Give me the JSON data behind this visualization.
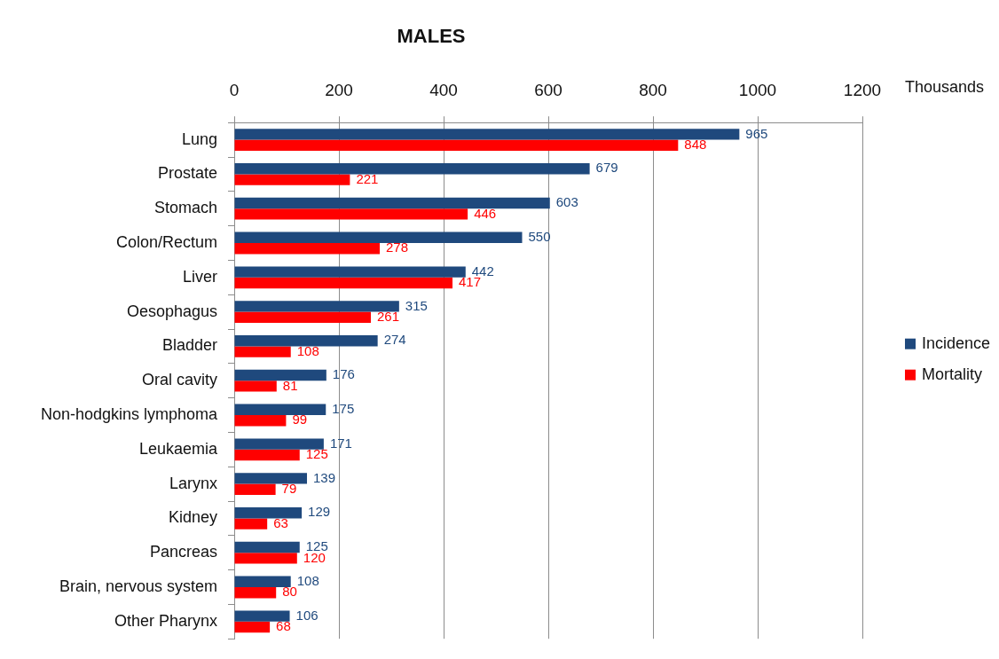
{
  "chart_data": {
    "type": "bar",
    "orientation": "horizontal",
    "title": "MALES",
    "xlabel": "Thousands",
    "categories": [
      "Lung",
      "Prostate",
      "Stomach",
      "Colon/Rectum",
      "Liver",
      "Oesophagus",
      "Bladder",
      "Oral cavity",
      "Non-hodgkins lymphoma",
      "Leukaemia",
      "Larynx",
      "Kidney",
      "Pancreas",
      "Brain, nervous system",
      "Other Pharynx"
    ],
    "series": [
      {
        "name": "Incidence",
        "color": "#1f497d",
        "values": [
          965,
          679,
          603,
          550,
          442,
          315,
          274,
          176,
          175,
          171,
          139,
          129,
          125,
          108,
          106
        ]
      },
      {
        "name": "Mortality",
        "color": "#ff0000",
        "values": [
          848,
          221,
          446,
          278,
          417,
          261,
          108,
          81,
          99,
          125,
          79,
          63,
          120,
          80,
          68
        ]
      }
    ],
    "xlim": [
      0,
      1200
    ],
    "xticks": [
      0,
      200,
      400,
      600,
      800,
      1000,
      1200
    ],
    "grid": "x",
    "legend": "right",
    "data_labels": true
  }
}
